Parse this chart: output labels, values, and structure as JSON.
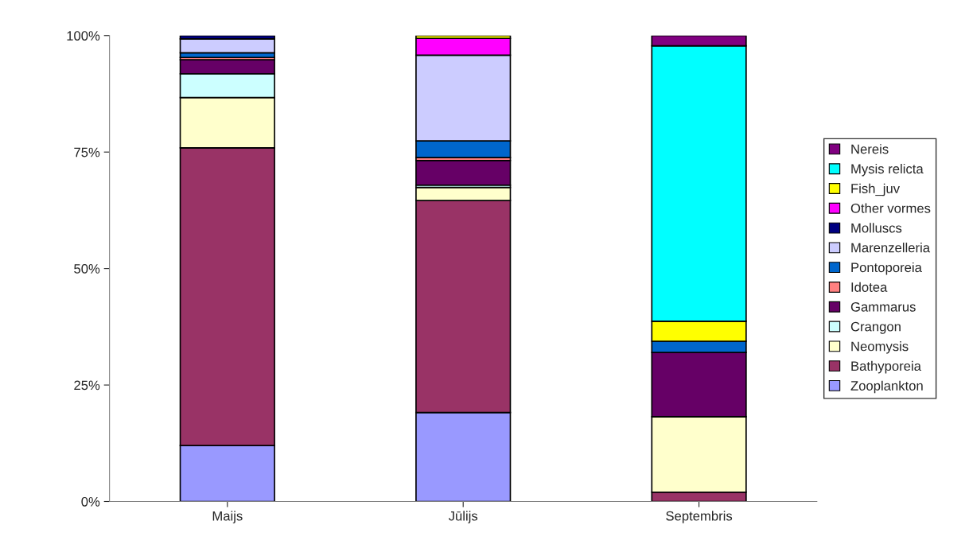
{
  "chart_data": {
    "type": "bar",
    "stacked": true,
    "categories": [
      "Maijs",
      "Jūlijs",
      "Septembris"
    ],
    "series": [
      {
        "name": "Zooplankton",
        "color": "#9999ff",
        "values": [
          12.0,
          19.1,
          null
        ]
      },
      {
        "name": "Bathyporeia",
        "color": "#993366",
        "values": [
          63.9,
          45.5,
          2.0
        ]
      },
      {
        "name": "Neomysis",
        "color": "#ffffcc",
        "values": [
          10.8,
          2.8,
          16.2
        ]
      },
      {
        "name": "Crangon",
        "color": "#ccffff",
        "values": [
          5.1,
          0.5,
          null
        ]
      },
      {
        "name": "Gammarus",
        "color": "#660066",
        "values": [
          3.0,
          5.3,
          13.8
        ]
      },
      {
        "name": "Idotea",
        "color": "#ff8080",
        "values": [
          0.5,
          0.6,
          null
        ]
      },
      {
        "name": "Pontoporeia",
        "color": "#0066cc",
        "values": [
          1.0,
          3.6,
          2.4
        ]
      },
      {
        "name": "Marenzelleria",
        "color": "#ccccff",
        "values": [
          3.0,
          18.4,
          null
        ]
      },
      {
        "name": "Molluscs",
        "color": "#000080",
        "values": [
          0.7,
          null,
          null
        ]
      },
      {
        "name": "Other vormes",
        "color": "#ff00ff",
        "values": [
          null,
          3.6,
          null
        ]
      },
      {
        "name": "Fish_juv",
        "color": "#ffff00",
        "values": [
          null,
          0.6,
          4.3
        ]
      },
      {
        "name": "Mysis relicta",
        "color": "#00ffff",
        "values": [
          null,
          null,
          59.1
        ]
      },
      {
        "name": "Nereis",
        "color": "#800080",
        "values": [
          null,
          null,
          2.2
        ]
      }
    ],
    "ylim": [
      0,
      100
    ],
    "yticks": [
      {
        "value": 0,
        "label": "0%"
      },
      {
        "value": 25,
        "label": "25%"
      },
      {
        "value": 50,
        "label": "50%"
      },
      {
        "value": 75,
        "label": "75%"
      },
      {
        "value": 100,
        "label": "100%"
      }
    ],
    "grid": false,
    "legend": "right"
  }
}
